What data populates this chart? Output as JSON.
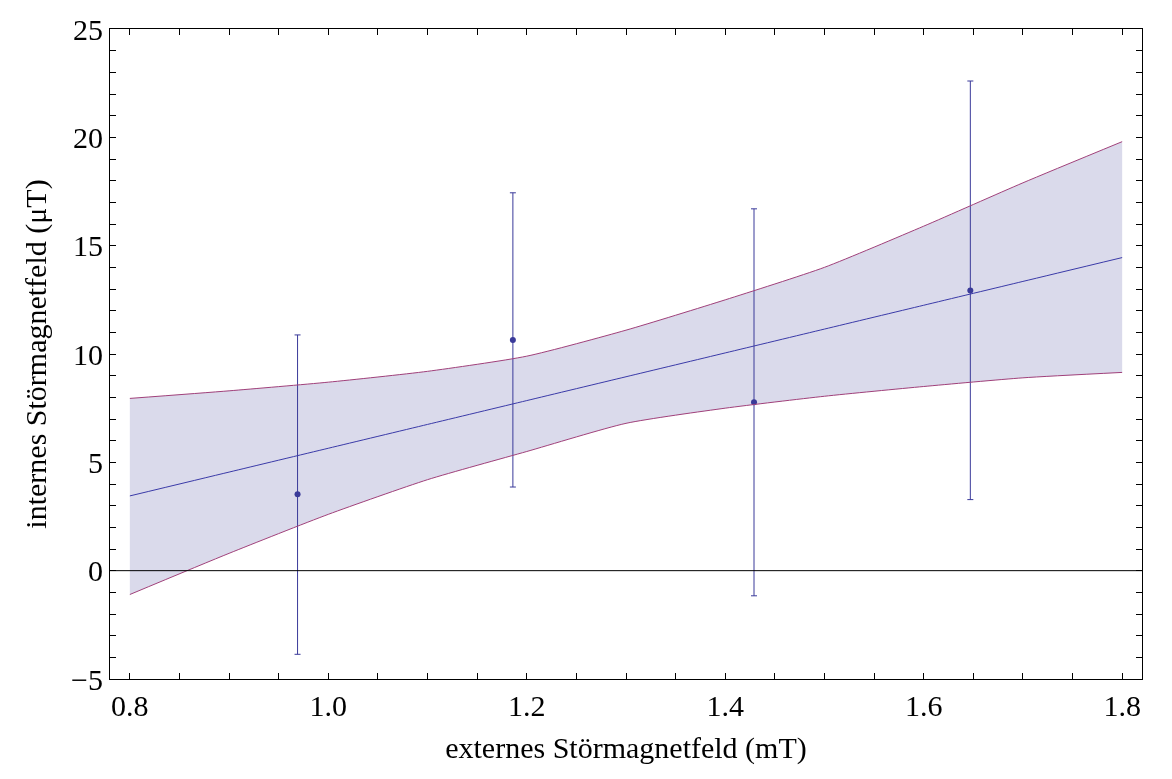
{
  "chart_data": {
    "type": "scatter",
    "xlabel": "externes Störmagnetfeld (mT)",
    "ylabel": "internes Störmagnetfeld (μT)",
    "x": [
      0.969,
      1.186,
      1.429,
      1.647
    ],
    "series": [
      {
        "color": "#3a3a9a",
        "marker": "circle",
        "values": [
          3.53,
          10.65,
          7.77,
          12.93
        ],
        "errors": [
          [
            -3.86,
            10.88
          ],
          [
            3.86,
            17.44
          ],
          [
            -1.16,
            16.7
          ],
          [
            3.28,
            22.6
          ]
        ]
      },
      {
        "type": "line",
        "color": "#3a3aa8",
        "x": [
          0.8,
          0.9,
          1.0,
          1.1,
          1.2,
          1.3,
          1.4,
          1.5,
          1.6,
          1.7,
          1.8
        ],
        "values": [
          3.45,
          4.55,
          5.65,
          6.75,
          7.85,
          8.95,
          10.05,
          11.15,
          12.25,
          13.35,
          14.45
        ],
        "lower": [
          -1.1,
          0.8,
          2.6,
          4.2,
          5.5,
          6.8,
          7.5,
          8.05,
          8.5,
          8.9,
          9.15
        ],
        "upper": [
          7.95,
          8.3,
          8.7,
          9.2,
          9.9,
          11.1,
          12.5,
          14.0,
          15.9,
          17.9,
          19.8
        ]
      },
      {
        "type": "line",
        "color": "#a0407a",
        "x": [
          0.8,
          0.9,
          1.0,
          1.1,
          1.2,
          1.3,
          1.4,
          1.5,
          1.6,
          1.7,
          1.8
        ],
        "values": [
          -1.1,
          0.8,
          2.6,
          4.2,
          5.5,
          6.8,
          7.5,
          8.05,
          8.5,
          8.9,
          9.15
        ]
      },
      {
        "type": "line",
        "color": "#a0407a",
        "x": [
          0.8,
          0.9,
          1.0,
          1.1,
          1.2,
          1.3,
          1.4,
          1.5,
          1.6,
          1.7,
          1.8
        ],
        "values": [
          7.95,
          8.3,
          8.7,
          9.2,
          9.9,
          11.1,
          12.5,
          14.0,
          15.9,
          17.9,
          19.8
        ]
      }
    ],
    "xlim": [
      0.78,
      1.82
    ],
    "ylim": [
      -5,
      25
    ],
    "xticks": [
      {
        "value": 0.8,
        "label": "0.8"
      },
      {
        "value": 0.85,
        "label": null
      },
      {
        "value": 0.9,
        "label": null
      },
      {
        "value": 0.95,
        "label": null
      },
      {
        "value": 1.0,
        "label": "1.0"
      },
      {
        "value": 1.05,
        "label": null
      },
      {
        "value": 1.1,
        "label": null
      },
      {
        "value": 1.15,
        "label": null
      },
      {
        "value": 1.2,
        "label": "1.2"
      },
      {
        "value": 1.25,
        "label": null
      },
      {
        "value": 1.3,
        "label": null
      },
      {
        "value": 1.35,
        "label": null
      },
      {
        "value": 1.4,
        "label": "1.4"
      },
      {
        "value": 1.45,
        "label": null
      },
      {
        "value": 1.5,
        "label": null
      },
      {
        "value": 1.55,
        "label": null
      },
      {
        "value": 1.6,
        "label": "1.6"
      },
      {
        "value": 1.65,
        "label": null
      },
      {
        "value": 1.7,
        "label": null
      },
      {
        "value": 1.75,
        "label": null
      },
      {
        "value": 1.8,
        "label": "1.8"
      }
    ],
    "yticks": [
      -5,
      {
        "value": -4,
        "label": null
      },
      {
        "value": -3,
        "label": null
      },
      {
        "value": -2,
        "label": null
      },
      {
        "value": -1,
        "label": null
      },
      0,
      {
        "value": 1,
        "label": null
      },
      {
        "value": 2,
        "label": null
      },
      {
        "value": 3,
        "label": null
      },
      {
        "value": 4,
        "label": null
      },
      5,
      {
        "value": 6,
        "label": null
      },
      {
        "value": 7,
        "label": null
      },
      {
        "value": 8,
        "label": null
      },
      {
        "value": 9,
        "label": null
      },
      10,
      {
        "value": 11,
        "label": null
      },
      {
        "value": 12,
        "label": null
      },
      {
        "value": 13,
        "label": null
      },
      {
        "value": 14,
        "label": null
      },
      15,
      {
        "value": 16,
        "label": null
      },
      {
        "value": 17,
        "label": null
      },
      {
        "value": 18,
        "label": null
      },
      {
        "value": 19,
        "label": null
      },
      20,
      {
        "value": 21,
        "label": null
      },
      {
        "value": 22,
        "label": null
      },
      {
        "value": 23,
        "label": null
      },
      {
        "value": 24,
        "label": null
      },
      25
    ],
    "ref_lines": [
      {
        "axis": "y",
        "value": 0,
        "color": "#000000"
      }
    ]
  }
}
